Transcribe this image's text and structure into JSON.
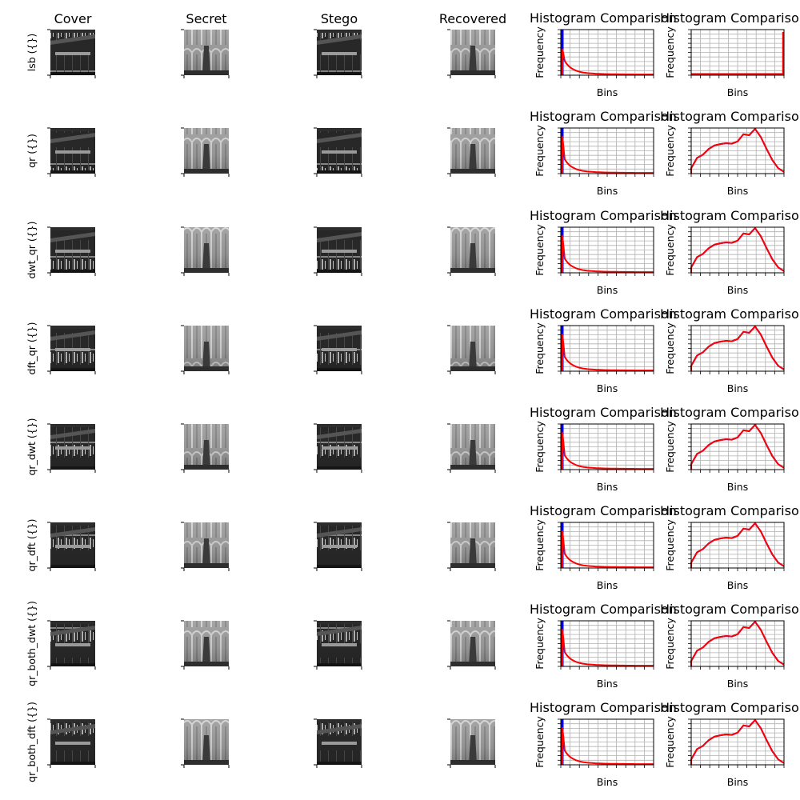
{
  "figure": {
    "columns": [
      "Cover",
      "Secret",
      "Stego",
      "Recovered"
    ],
    "colors": {
      "cover_series": "#0000ff",
      "stego_series": "#ff0000"
    }
  },
  "chart_data": {
    "type": "line",
    "layout": "grid of 8 rows x 6 columns; 4 image panels followed by 2 histogram panels per row",
    "rows": [
      {
        "label": "lsb ({})",
        "histograms": [
          {
            "title": "Histogram Comparison",
            "xlabel": "Bins",
            "ylabel": "Frequency",
            "grid": true,
            "shape": "spike",
            "peak_cover": 1.0,
            "peak_stego": 0.58
          },
          {
            "title": "Histogram Comparison",
            "xlabel": "Bins",
            "ylabel": "Frequency",
            "grid": true,
            "shape": "edge-spike"
          }
        ]
      },
      {
        "label": "qr ({})",
        "histograms": [
          {
            "title": "Histogram Comparison",
            "xlabel": "Bins",
            "ylabel": "Frequency",
            "grid": true,
            "shape": "spike",
            "peak_cover": 1.0,
            "peak_stego": 0.82
          },
          {
            "title": "Histogram Comparison",
            "xlabel": "Bins",
            "ylabel": "Frequency",
            "grid": true,
            "shape": "curve"
          }
        ]
      },
      {
        "label": "dwt_qr ({})",
        "histograms": [
          {
            "title": "Histogram Comparison",
            "xlabel": "Bins",
            "ylabel": "Frequency",
            "grid": true,
            "shape": "spike",
            "peak_cover": 1.0,
            "peak_stego": 0.82
          },
          {
            "title": "Histogram Comparison",
            "xlabel": "Bins",
            "ylabel": "Frequency",
            "grid": true,
            "shape": "curve"
          }
        ]
      },
      {
        "label": "dft_qr ({})",
        "histograms": [
          {
            "title": "Histogram Comparison",
            "xlabel": "Bins",
            "ylabel": "Frequency",
            "grid": true,
            "shape": "spike",
            "peak_cover": 1.0,
            "peak_stego": 0.82
          },
          {
            "title": "Histogram Comparison",
            "xlabel": "Bins",
            "ylabel": "Frequency",
            "grid": true,
            "shape": "curve"
          }
        ]
      },
      {
        "label": "qr_dwt ({})",
        "histograms": [
          {
            "title": "Histogram Comparison",
            "xlabel": "Bins",
            "ylabel": "Frequency",
            "grid": true,
            "shape": "spike",
            "peak_cover": 1.0,
            "peak_stego": 0.82
          },
          {
            "title": "Histogram Comparison",
            "xlabel": "Bins",
            "ylabel": "Frequency",
            "grid": true,
            "shape": "curve"
          }
        ]
      },
      {
        "label": "qr_dft ({})",
        "histograms": [
          {
            "title": "Histogram Comparison",
            "xlabel": "Bins",
            "ylabel": "Frequency",
            "grid": true,
            "shape": "spike",
            "peak_cover": 1.0,
            "peak_stego": 0.82
          },
          {
            "title": "Histogram Comparison",
            "xlabel": "Bins",
            "ylabel": "Frequency",
            "grid": true,
            "shape": "curve"
          }
        ]
      },
      {
        "label": "qr_both_dwt ({})",
        "histograms": [
          {
            "title": "Histogram Comparison",
            "xlabel": "Bins",
            "ylabel": "Frequency",
            "grid": true,
            "shape": "spike",
            "peak_cover": 1.0,
            "peak_stego": 0.82
          },
          {
            "title": "Histogram Comparison",
            "xlabel": "Bins",
            "ylabel": "Frequency",
            "grid": true,
            "shape": "curve"
          }
        ]
      },
      {
        "label": "qr_both_dft ({})",
        "histograms": [
          {
            "title": "Histogram Comparison",
            "xlabel": "Bins",
            "ylabel": "Frequency",
            "grid": true,
            "shape": "spike",
            "peak_cover": 1.0,
            "peak_stego": 0.82
          },
          {
            "title": "Histogram Comparison",
            "xlabel": "Bins",
            "ylabel": "Frequency",
            "grid": true,
            "shape": "curve"
          }
        ]
      }
    ],
    "curve_shape_y": [
      0.12,
      0.35,
      0.42,
      0.55,
      0.63,
      0.66,
      0.68,
      0.67,
      0.72,
      0.88,
      0.86,
      1.0,
      0.82,
      0.55,
      0.3,
      0.12,
      0.04
    ]
  }
}
